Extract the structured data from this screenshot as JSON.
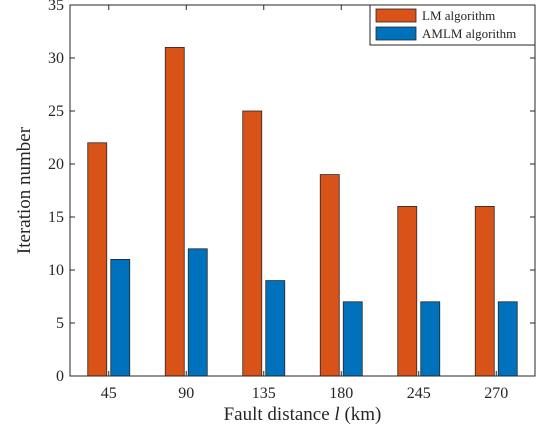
{
  "chart_data": {
    "type": "bar",
    "categories": [
      "45",
      "90",
      "135",
      "180",
      "245",
      "270"
    ],
    "series": [
      {
        "name": "LM algorithm",
        "values": [
          22,
          31,
          25,
          19,
          16,
          16
        ],
        "color": "#D95319"
      },
      {
        "name": "AMLM algorithm",
        "values": [
          11,
          12,
          9,
          7,
          7,
          7
        ],
        "color": "#0072BD"
      }
    ],
    "xlabel": {
      "prefix": "Fault distance ",
      "italic": "l",
      "suffix": " (km)"
    },
    "ylabel": "Iteration number",
    "ylim": [
      0,
      35
    ],
    "yticks": [
      0,
      5,
      10,
      15,
      20,
      25,
      30,
      35
    ],
    "grid": false,
    "legend_position": "top-right"
  }
}
